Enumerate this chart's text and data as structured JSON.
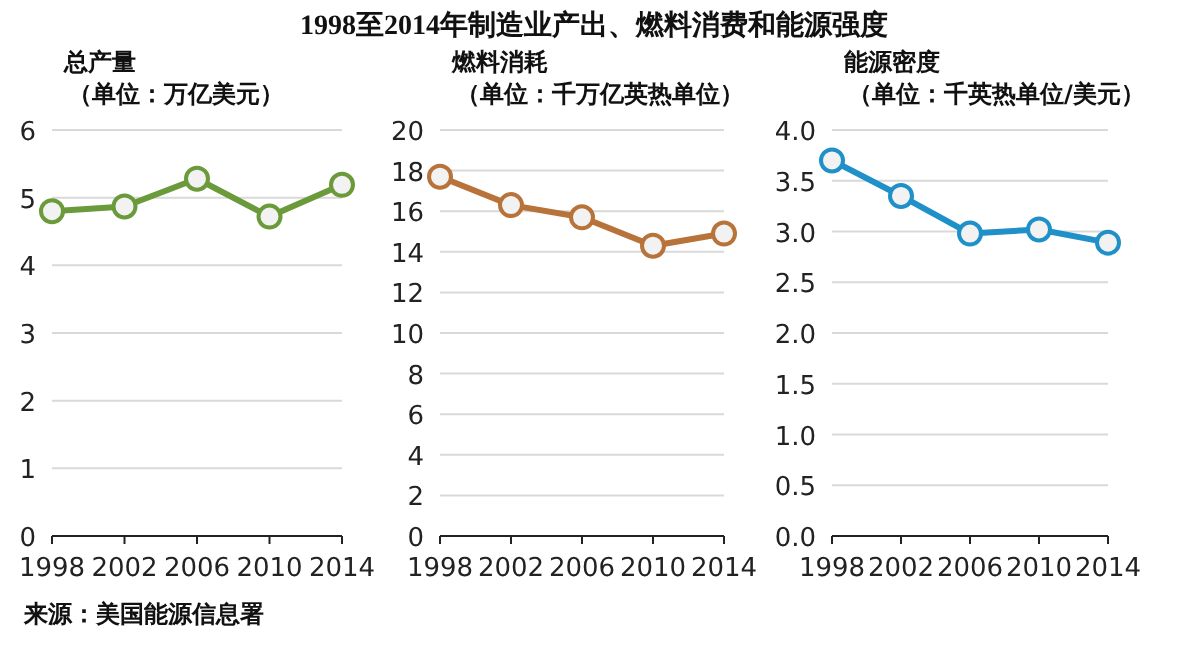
{
  "chart_data": [
    {
      "type": "line",
      "title": "总产量",
      "subtitle": "（单位：万亿美元）",
      "categories": [
        "1998",
        "2002",
        "2006",
        "2010",
        "2014"
      ],
      "series": [
        {
          "color": "#6b9a3a",
          "values": [
            4.8,
            4.87,
            5.28,
            4.72,
            5.19
          ]
        }
      ],
      "ylim": [
        0,
        6
      ],
      "yticks": [
        0,
        1,
        2,
        3,
        4,
        5,
        6
      ],
      "grid": "y",
      "marker": "circle",
      "annotations": [
        "1998至2014年制造业产出、燃料消费和能源强度",
        "来源：美国能源信息署"
      ]
    },
    {
      "type": "line",
      "title": "燃料消耗",
      "subtitle": "（单位：千万亿英热单位）",
      "categories": [
        "1998",
        "2002",
        "2006",
        "2010",
        "2014"
      ],
      "series": [
        {
          "color": "#b8733a",
          "values": [
            17.7,
            16.3,
            15.7,
            14.3,
            14.9
          ]
        }
      ],
      "ylim": [
        0,
        20
      ],
      "yticks": [
        0,
        2,
        4,
        6,
        8,
        10,
        12,
        14,
        16,
        18,
        20
      ],
      "grid": "y",
      "marker": "circle"
    },
    {
      "type": "line",
      "title": "能源密度",
      "subtitle": "（单位：千英热单位/美元）",
      "categories": [
        "1998",
        "2002",
        "2006",
        "2010",
        "2014"
      ],
      "series": [
        {
          "color": "#1f90c8",
          "values": [
            3.7,
            3.35,
            2.98,
            3.02,
            2.89
          ]
        }
      ],
      "ylim": [
        0,
        4
      ],
      "yticks": [
        {
          "value": 0,
          "label": "0.0"
        },
        {
          "value": 0.5,
          "label": "0.5"
        },
        {
          "value": 1,
          "label": "1.0"
        },
        {
          "value": 1.5,
          "label": "1.5"
        },
        {
          "value": 2,
          "label": "2.0"
        },
        {
          "value": 2.5,
          "label": "2.5"
        },
        {
          "value": 3,
          "label": "3.0"
        },
        {
          "value": 3.5,
          "label": "3.5"
        },
        {
          "value": 4,
          "label": "4.0"
        }
      ],
      "grid": "y",
      "marker": "circle"
    }
  ]
}
